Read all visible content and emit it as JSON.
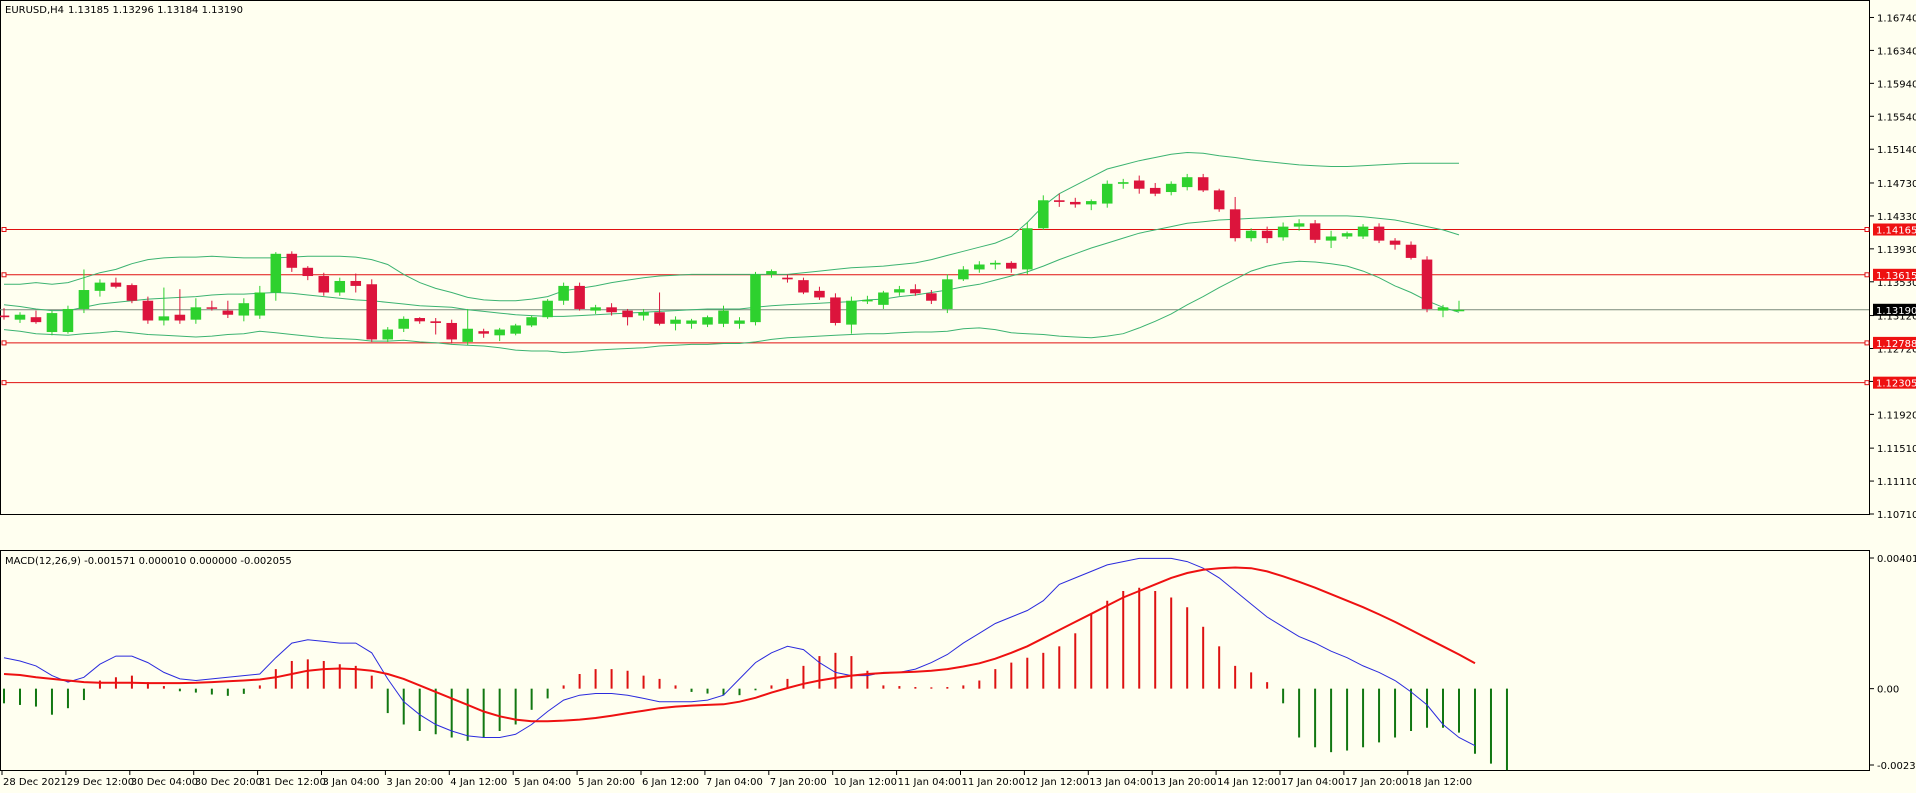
{
  "header": {
    "symbol": "EURUSD,H4",
    "ohlc": "1.13185 1.13296 1.13184 1.13190"
  },
  "indicator": {
    "label": "MACD(12,26,9) -0.001571 0.000010 0.000000 -0.002055"
  },
  "colors": {
    "background": "#fffff0",
    "up_candle": "#2ed12e",
    "down_candle": "#dc143c",
    "bollinger": "#3cb371",
    "h_line": "#e01010",
    "macd_line": "#2b2bdd",
    "signal_line": "#ee1111",
    "hist_up": "#dd1111",
    "hist_down": "#117711"
  },
  "main_axis": {
    "labels": [
      "1.16740",
      "1.16340",
      "1.15940",
      "1.15540",
      "1.15140",
      "1.14730",
      "1.14330",
      "1.13930",
      "1.13530",
      "1.13120",
      "1.12720",
      "1.12320",
      "1.11920",
      "1.11510",
      "1.11110",
      "1.10710"
    ]
  },
  "price_tags": [
    {
      "value": 1.14165,
      "text": "1.14165",
      "style": "red"
    },
    {
      "value": 1.13615,
      "text": "1.13615",
      "style": "red"
    },
    {
      "value": 1.1319,
      "text": "1.13190",
      "style": "black"
    },
    {
      "value": 1.12788,
      "text": "1.12788",
      "style": "red"
    },
    {
      "value": 1.12305,
      "text": "1.12305",
      "style": "red"
    }
  ],
  "macd_axis": {
    "labels": [
      "0.004012",
      "0.00",
      "-0.002344"
    ]
  },
  "time_axis": {
    "labels": [
      "28 Dec 2021",
      "29 Dec 12:00",
      "30 Dec 04:00",
      "30 Dec 20:00",
      "31 Dec 12:00",
      "3 Jan 04:00",
      "3 Jan 20:00",
      "4 Jan 12:00",
      "5 Jan 04:00",
      "5 Jan 20:00",
      "6 Jan 12:00",
      "7 Jan 04:00",
      "7 Jan 20:00",
      "10 Jan 12:00",
      "11 Jan 04:00",
      "11 Jan 20:00",
      "12 Jan 12:00",
      "13 Jan 04:00",
      "13 Jan 20:00",
      "14 Jan 12:00",
      "17 Jan 04:00",
      "17 Jan 20:00",
      "18 Jan 12:00"
    ]
  },
  "chart_data": {
    "type": "candlestick",
    "main_ylim": [
      1.1071,
      1.1694
    ],
    "macd_ylim": [
      -0.002344,
      0.004012
    ],
    "horizontal_lines": [
      1.14165,
      1.13615,
      1.12788,
      1.12305
    ],
    "current_price": 1.1319,
    "candles": [
      {
        "o": 1.1312,
        "h": 1.1321,
        "l": 1.1307,
        "c": 1.131
      },
      {
        "o": 1.1307,
        "h": 1.1316,
        "l": 1.1303,
        "c": 1.1313
      },
      {
        "o": 1.131,
        "h": 1.1318,
        "l": 1.1302,
        "c": 1.1304
      },
      {
        "o": 1.1292,
        "h": 1.1318,
        "l": 1.1288,
        "c": 1.1315
      },
      {
        "o": 1.1292,
        "h": 1.1324,
        "l": 1.129,
        "c": 1.132
      },
      {
        "o": 1.132,
        "h": 1.1368,
        "l": 1.1315,
        "c": 1.1343
      },
      {
        "o": 1.1342,
        "h": 1.1356,
        "l": 1.1335,
        "c": 1.1352
      },
      {
        "o": 1.1352,
        "h": 1.1358,
        "l": 1.1345,
        "c": 1.1347
      },
      {
        "o": 1.1349,
        "h": 1.1351,
        "l": 1.1327,
        "c": 1.133
      },
      {
        "o": 1.133,
        "h": 1.1335,
        "l": 1.1302,
        "c": 1.1306
      },
      {
        "o": 1.1306,
        "h": 1.1346,
        "l": 1.13,
        "c": 1.1311
      },
      {
        "o": 1.1313,
        "h": 1.1344,
        "l": 1.1302,
        "c": 1.1306
      },
      {
        "o": 1.1307,
        "h": 1.1333,
        "l": 1.1302,
        "c": 1.1322
      },
      {
        "o": 1.1322,
        "h": 1.133,
        "l": 1.1318,
        "c": 1.1321
      },
      {
        "o": 1.1318,
        "h": 1.133,
        "l": 1.1309,
        "c": 1.1313
      },
      {
        "o": 1.1312,
        "h": 1.1333,
        "l": 1.1305,
        "c": 1.1327
      },
      {
        "o": 1.1312,
        "h": 1.1348,
        "l": 1.1308,
        "c": 1.134
      },
      {
        "o": 1.134,
        "h": 1.1389,
        "l": 1.133,
        "c": 1.1387
      },
      {
        "o": 1.1387,
        "h": 1.139,
        "l": 1.1365,
        "c": 1.137
      },
      {
        "o": 1.137,
        "h": 1.1372,
        "l": 1.1355,
        "c": 1.136
      },
      {
        "o": 1.136,
        "h": 1.1364,
        "l": 1.1336,
        "c": 1.134
      },
      {
        "o": 1.134,
        "h": 1.1358,
        "l": 1.1336,
        "c": 1.1354
      },
      {
        "o": 1.1354,
        "h": 1.1363,
        "l": 1.134,
        "c": 1.1348
      },
      {
        "o": 1.135,
        "h": 1.1356,
        "l": 1.128,
        "c": 1.1283
      },
      {
        "o": 1.1283,
        "h": 1.1298,
        "l": 1.128,
        "c": 1.1295
      },
      {
        "o": 1.1296,
        "h": 1.1311,
        "l": 1.1292,
        "c": 1.1308
      },
      {
        "o": 1.1309,
        "h": 1.131,
        "l": 1.1302,
        "c": 1.1305
      },
      {
        "o": 1.1305,
        "h": 1.1309,
        "l": 1.1289,
        "c": 1.1303
      },
      {
        "o": 1.1303,
        "h": 1.1307,
        "l": 1.1278,
        "c": 1.1283
      },
      {
        "o": 1.128,
        "h": 1.132,
        "l": 1.1276,
        "c": 1.1296
      },
      {
        "o": 1.1293,
        "h": 1.1296,
        "l": 1.1285,
        "c": 1.129
      },
      {
        "o": 1.1288,
        "h": 1.1297,
        "l": 1.1281,
        "c": 1.1295
      },
      {
        "o": 1.129,
        "h": 1.1302,
        "l": 1.1288,
        "c": 1.13
      },
      {
        "o": 1.13,
        "h": 1.1312,
        "l": 1.1298,
        "c": 1.131
      },
      {
        "o": 1.131,
        "h": 1.1332,
        "l": 1.1308,
        "c": 1.133
      },
      {
        "o": 1.133,
        "h": 1.1352,
        "l": 1.1325,
        "c": 1.1348
      },
      {
        "o": 1.1348,
        "h": 1.1352,
        "l": 1.1318,
        "c": 1.132
      },
      {
        "o": 1.1318,
        "h": 1.1325,
        "l": 1.1314,
        "c": 1.1322
      },
      {
        "o": 1.1322,
        "h": 1.1327,
        "l": 1.1312,
        "c": 1.1316
      },
      {
        "o": 1.1318,
        "h": 1.132,
        "l": 1.13,
        "c": 1.131
      },
      {
        "o": 1.1312,
        "h": 1.132,
        "l": 1.1306,
        "c": 1.1316
      },
      {
        "o": 1.1316,
        "h": 1.134,
        "l": 1.13,
        "c": 1.1302
      },
      {
        "o": 1.1302,
        "h": 1.1311,
        "l": 1.1294,
        "c": 1.1307
      },
      {
        "o": 1.1302,
        "h": 1.1308,
        "l": 1.1296,
        "c": 1.1306
      },
      {
        "o": 1.1301,
        "h": 1.1312,
        "l": 1.1298,
        "c": 1.131
      },
      {
        "o": 1.1302,
        "h": 1.1324,
        "l": 1.1298,
        "c": 1.1318
      },
      {
        "o": 1.1302,
        "h": 1.131,
        "l": 1.1296,
        "c": 1.1306
      },
      {
        "o": 1.1304,
        "h": 1.1365,
        "l": 1.13,
        "c": 1.1362
      },
      {
        "o": 1.1362,
        "h": 1.1368,
        "l": 1.1358,
        "c": 1.1366
      },
      {
        "o": 1.1358,
        "h": 1.1362,
        "l": 1.1352,
        "c": 1.1356
      },
      {
        "o": 1.1355,
        "h": 1.1358,
        "l": 1.1338,
        "c": 1.134
      },
      {
        "o": 1.1342,
        "h": 1.1347,
        "l": 1.1331,
        "c": 1.1334
      },
      {
        "o": 1.1334,
        "h": 1.1339,
        "l": 1.13,
        "c": 1.1303
      },
      {
        "o": 1.1301,
        "h": 1.1335,
        "l": 1.129,
        "c": 1.133
      },
      {
        "o": 1.133,
        "h": 1.1336,
        "l": 1.1326,
        "c": 1.1331
      },
      {
        "o": 1.1325,
        "h": 1.1342,
        "l": 1.132,
        "c": 1.134
      },
      {
        "o": 1.134,
        "h": 1.1348,
        "l": 1.1336,
        "c": 1.1344
      },
      {
        "o": 1.1344,
        "h": 1.135,
        "l": 1.1336,
        "c": 1.1339
      },
      {
        "o": 1.1339,
        "h": 1.1343,
        "l": 1.1326,
        "c": 1.133
      },
      {
        "o": 1.132,
        "h": 1.1362,
        "l": 1.1315,
        "c": 1.1356
      },
      {
        "o": 1.1356,
        "h": 1.1372,
        "l": 1.1354,
        "c": 1.1368
      },
      {
        "o": 1.1368,
        "h": 1.1378,
        "l": 1.1364,
        "c": 1.1374
      },
      {
        "o": 1.1374,
        "h": 1.1379,
        "l": 1.1368,
        "c": 1.1376
      },
      {
        "o": 1.1376,
        "h": 1.1378,
        "l": 1.1364,
        "c": 1.1369
      },
      {
        "o": 1.1368,
        "h": 1.1425,
        "l": 1.1362,
        "c": 1.1418
      },
      {
        "o": 1.1418,
        "h": 1.1458,
        "l": 1.1416,
        "c": 1.1452
      },
      {
        "o": 1.1452,
        "h": 1.146,
        "l": 1.1444,
        "c": 1.145
      },
      {
        "o": 1.145,
        "h": 1.1455,
        "l": 1.1443,
        "c": 1.1447
      },
      {
        "o": 1.1447,
        "h": 1.1453,
        "l": 1.144,
        "c": 1.1451
      },
      {
        "o": 1.1448,
        "h": 1.1476,
        "l": 1.1443,
        "c": 1.1472
      },
      {
        "o": 1.1472,
        "h": 1.1478,
        "l": 1.1466,
        "c": 1.1474
      },
      {
        "o": 1.1476,
        "h": 1.1482,
        "l": 1.146,
        "c": 1.1466
      },
      {
        "o": 1.1467,
        "h": 1.1473,
        "l": 1.1457,
        "c": 1.146
      },
      {
        "o": 1.1462,
        "h": 1.1475,
        "l": 1.1458,
        "c": 1.1472
      },
      {
        "o": 1.1468,
        "h": 1.1484,
        "l": 1.1464,
        "c": 1.148
      },
      {
        "o": 1.148,
        "h": 1.1484,
        "l": 1.1462,
        "c": 1.1464
      },
      {
        "o": 1.1464,
        "h": 1.1466,
        "l": 1.1438,
        "c": 1.1441
      },
      {
        "o": 1.1441,
        "h": 1.1456,
        "l": 1.1402,
        "c": 1.1406
      },
      {
        "o": 1.1406,
        "h": 1.1418,
        "l": 1.1402,
        "c": 1.1415
      },
      {
        "o": 1.1415,
        "h": 1.142,
        "l": 1.14,
        "c": 1.1406
      },
      {
        "o": 1.1407,
        "h": 1.1425,
        "l": 1.1403,
        "c": 1.142
      },
      {
        "o": 1.142,
        "h": 1.1429,
        "l": 1.1415,
        "c": 1.1424
      },
      {
        "o": 1.1424,
        "h": 1.1428,
        "l": 1.14,
        "c": 1.1404
      },
      {
        "o": 1.1403,
        "h": 1.1415,
        "l": 1.1394,
        "c": 1.1408
      },
      {
        "o": 1.1408,
        "h": 1.1414,
        "l": 1.1405,
        "c": 1.1412
      },
      {
        "o": 1.1408,
        "h": 1.1423,
        "l": 1.1405,
        "c": 1.142
      },
      {
        "o": 1.142,
        "h": 1.1424,
        "l": 1.14,
        "c": 1.1403
      },
      {
        "o": 1.1403,
        "h": 1.1406,
        "l": 1.1392,
        "c": 1.1398
      },
      {
        "o": 1.1398,
        "h": 1.1402,
        "l": 1.138,
        "c": 1.1382
      },
      {
        "o": 1.138,
        "h": 1.1384,
        "l": 1.1316,
        "c": 1.132
      },
      {
        "o": 1.1318,
        "h": 1.1325,
        "l": 1.131,
        "c": 1.1322
      },
      {
        "o": 1.1319,
        "h": 1.133,
        "l": 1.1318,
        "c": 1.1319
      }
    ],
    "bollinger_upper": [
      1.135,
      1.135,
      1.1352,
      1.135,
      1.1352,
      1.1358,
      1.1364,
      1.1368,
      1.1375,
      1.138,
      1.1382,
      1.1383,
      1.1383,
      1.1384,
      1.1383,
      1.1382,
      1.1382,
      1.1382,
      1.1383,
      1.1384,
      1.1384,
      1.1384,
      1.1383,
      1.138,
      1.1374,
      1.1362,
      1.1352,
      1.1345,
      1.134,
      1.1334,
      1.1331,
      1.133,
      1.133,
      1.1332,
      1.1335,
      1.1342,
      1.1345,
      1.1348,
      1.1352,
      1.1355,
      1.1358,
      1.136,
      1.1361,
      1.1362,
      1.1362,
      1.1362,
      1.1362,
      1.1362,
      1.1362,
      1.1362,
      1.1364,
      1.1366,
      1.1368,
      1.137,
      1.1371,
      1.1372,
      1.1374,
      1.1376,
      1.138,
      1.1385,
      1.139,
      1.1395,
      1.14,
      1.1408,
      1.1425,
      1.1445,
      1.146,
      1.147,
      1.148,
      1.149,
      1.1495,
      1.15,
      1.1504,
      1.1508,
      1.151,
      1.1509,
      1.1506,
      1.1504,
      1.1501,
      1.1499,
      1.1497,
      1.1495,
      1.1494,
      1.1493,
      1.1493,
      1.1494,
      1.1495,
      1.1496,
      1.1497,
      1.1497,
      1.1497,
      1.1497
    ],
    "bollinger_middle": [
      1.1325,
      1.1323,
      1.132,
      1.1318,
      1.1318,
      1.1322,
      1.1326,
      1.1328,
      1.133,
      1.1332,
      1.1333,
      1.1334,
      1.1335,
      1.1337,
      1.1338,
      1.1338,
      1.1339,
      1.134,
      1.1339,
      1.1337,
      1.1335,
      1.1333,
      1.1331,
      1.133,
      1.1328,
      1.1326,
      1.1324,
      1.1323,
      1.1322,
      1.1319,
      1.1317,
      1.1315,
      1.1313,
      1.1312,
      1.1311,
      1.1311,
      1.1312,
      1.1313,
      1.1314,
      1.1315,
      1.1316,
      1.1317,
      1.1318,
      1.1319,
      1.132,
      1.132,
      1.132,
      1.1322,
      1.1324,
      1.1325,
      1.1326,
      1.1327,
      1.1328,
      1.1329,
      1.1331,
      1.1332,
      1.1335,
      1.1337,
      1.134,
      1.1343,
      1.1347,
      1.135,
      1.1355,
      1.136,
      1.1365,
      1.1372,
      1.138,
      1.1387,
      1.1394,
      1.14,
      1.1406,
      1.1412,
      1.1416,
      1.142,
      1.1424,
      1.1426,
      1.1428,
      1.1429,
      1.143,
      1.1431,
      1.1432,
      1.1433,
      1.1433,
      1.1433,
      1.1433,
      1.1432,
      1.143,
      1.1428,
      1.1424,
      1.142,
      1.1416,
      1.141
    ],
    "bollinger_lower": [
      1.1295,
      1.1293,
      1.129,
      1.1289,
      1.1288,
      1.129,
      1.1291,
      1.1293,
      1.1291,
      1.1289,
      1.1288,
      1.1287,
      1.1286,
      1.1287,
      1.1289,
      1.129,
      1.1293,
      1.1291,
      1.1289,
      1.1287,
      1.1285,
      1.1284,
      1.1283,
      1.1281,
      1.1281,
      1.1282,
      1.128,
      1.1279,
      1.1277,
      1.1276,
      1.1275,
      1.1273,
      1.127,
      1.1269,
      1.1269,
      1.1267,
      1.1268,
      1.127,
      1.1271,
      1.1272,
      1.1273,
      1.1275,
      1.1276,
      1.1277,
      1.1277,
      1.1278,
      1.1278,
      1.128,
      1.1283,
      1.1285,
      1.1286,
      1.1287,
      1.1288,
      1.1289,
      1.129,
      1.129,
      1.1291,
      1.1292,
      1.1292,
      1.1293,
      1.1296,
      1.1297,
      1.1295,
      1.1291,
      1.129,
      1.1289,
      1.1287,
      1.1286,
      1.1285,
      1.1287,
      1.129,
      1.1297,
      1.1305,
      1.1314,
      1.1325,
      1.1335,
      1.1346,
      1.1356,
      1.1366,
      1.1372,
      1.1376,
      1.1378,
      1.1377,
      1.1375,
      1.1372,
      1.1366,
      1.1358,
      1.1348,
      1.134,
      1.133,
      1.1322,
      1.1316
    ],
    "macd_histogram": [
      -0.00045,
      -0.0005,
      -0.00055,
      -0.0008,
      -0.0006,
      -0.00035,
      0.00025,
      0.00035,
      0.0004,
      0.0002,
      8e-05,
      -8e-05,
      -0.00012,
      -0.00018,
      -0.00022,
      -0.00016,
      0.0001,
      0.0006,
      0.00085,
      0.0009,
      0.00085,
      0.00075,
      0.0007,
      0.0004,
      -0.00075,
      -0.0011,
      -0.0013,
      -0.0014,
      -0.0015,
      -0.0016,
      -0.0015,
      -0.0013,
      -0.0011,
      -0.00065,
      -0.0003,
      0.0001,
      0.00045,
      0.0006,
      0.0006,
      0.00055,
      0.0004,
      0.0003,
      0.0001,
      -0.0001,
      -0.00015,
      -0.0002,
      -0.0002,
      -5e-05,
      0.0001,
      0.0003,
      0.0007,
      0.001,
      0.0011,
      0.001,
      0.00055,
      0.0001,
      8e-05,
      5e-05,
      4e-05,
      5e-05,
      0.0001,
      0.00025,
      0.0006,
      0.0008,
      0.00095,
      0.0011,
      0.0013,
      0.0017,
      0.0023,
      0.0027,
      0.003,
      0.0031,
      0.003,
      0.0028,
      0.0025,
      0.0019,
      0.0013,
      0.0007,
      0.0005,
      0.0002,
      -0.00045,
      -0.0015,
      -0.0018,
      -0.00195,
      -0.0019,
      -0.0018,
      -0.00165,
      -0.0015,
      -0.0013,
      -0.0012,
      -0.0012,
      -0.00135,
      -0.002,
      -0.0023,
      -0.0025
    ],
    "macd_line": [
      0.00095,
      0.00085,
      0.0007,
      0.0004,
      0.0002,
      0.00035,
      0.00075,
      0.001,
      0.001,
      0.0008,
      0.0005,
      0.0003,
      0.00025,
      0.0003,
      0.00035,
      0.0004,
      0.00045,
      0.00095,
      0.0014,
      0.0015,
      0.00145,
      0.0014,
      0.0014,
      0.0011,
      0.0003,
      -0.0004,
      -0.0008,
      -0.0011,
      -0.0013,
      -0.00145,
      -0.0015,
      -0.0015,
      -0.0014,
      -0.0011,
      -0.0007,
      -0.00035,
      -0.0002,
      -0.00015,
      -0.00015,
      -0.0002,
      -0.0003,
      -0.0004,
      -0.0004,
      -0.0004,
      -0.00035,
      -0.0002,
      0.0003,
      0.0008,
      0.0011,
      0.0013,
      0.0012,
      0.0008,
      0.0005,
      0.0004,
      0.0004,
      0.0005,
      0.0005,
      0.0006,
      0.0008,
      0.00105,
      0.0014,
      0.0017,
      0.002,
      0.0022,
      0.0024,
      0.0027,
      0.0032,
      0.0034,
      0.0036,
      0.0038,
      0.0039,
      0.004,
      0.004,
      0.004,
      0.0039,
      0.0037,
      0.0034,
      0.003,
      0.0026,
      0.0022,
      0.0019,
      0.0016,
      0.0014,
      0.00115,
      0.00095,
      0.0007,
      0.0005,
      0.00025,
      -0.0001,
      -0.0005,
      -0.0011,
      -0.0015,
      -0.00175
    ],
    "signal_line": [
      0.00045,
      0.00042,
      0.00035,
      0.0003,
      0.00025,
      0.0002,
      0.00018,
      0.00018,
      0.00018,
      0.00017,
      0.00017,
      0.00017,
      0.00018,
      0.0002,
      0.00023,
      0.00025,
      0.00028,
      0.00035,
      0.00045,
      0.00055,
      0.0006,
      0.00062,
      0.0006,
      0.00055,
      0.00045,
      0.0003,
      0.0001,
      -0.0001,
      -0.0003,
      -0.0005,
      -0.0007,
      -0.00085,
      -0.00095,
      -0.001,
      -0.001,
      -0.00098,
      -0.00095,
      -0.0009,
      -0.00083,
      -0.00075,
      -0.00068,
      -0.0006,
      -0.00055,
      -0.00052,
      -0.0005,
      -0.00048,
      -0.0004,
      -0.00028,
      -0.00012,
      2e-05,
      0.00015,
      0.00025,
      0.00033,
      0.0004,
      0.00045,
      0.00048,
      0.0005,
      0.00052,
      0.00055,
      0.0006,
      0.00068,
      0.00078,
      0.00092,
      0.0011,
      0.0013,
      0.00155,
      0.0018,
      0.00205,
      0.0023,
      0.00255,
      0.0028,
      0.003,
      0.0032,
      0.0034,
      0.00355,
      0.00365,
      0.0037,
      0.00372,
      0.0037,
      0.0036,
      0.00345,
      0.00328,
      0.0031,
      0.0029,
      0.0027,
      0.0025,
      0.00228,
      0.00205,
      0.0018,
      0.00155,
      0.0013,
      0.00105,
      0.00078
    ]
  }
}
